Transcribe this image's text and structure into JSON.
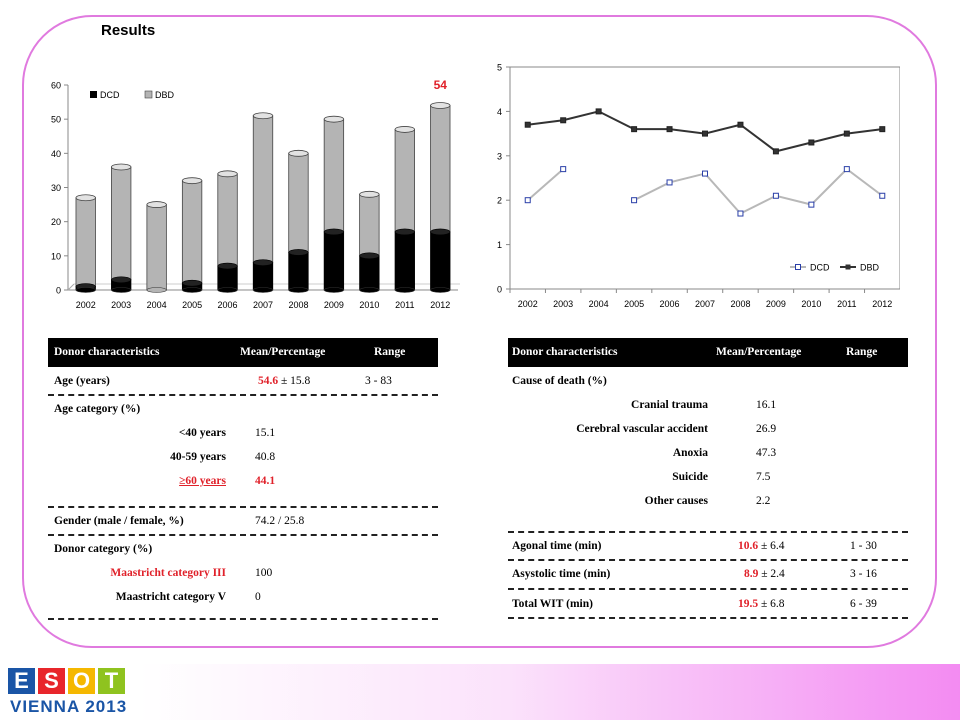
{
  "page_title": "Results",
  "chart_data": [
    {
      "type": "bar",
      "stacked": true,
      "categories": [
        "2002",
        "2003",
        "2004",
        "2005",
        "2006",
        "2007",
        "2008",
        "2009",
        "2010",
        "2011",
        "2012"
      ],
      "series": [
        {
          "name": "DCD",
          "values": [
            1,
            3,
            0,
            2,
            7,
            8,
            11,
            17,
            10,
            17,
            17
          ],
          "color": "#000000"
        },
        {
          "name": "DBD",
          "values": [
            26,
            33,
            25,
            30,
            27,
            43,
            29,
            33,
            18,
            30,
            37
          ],
          "color": "#b4b4b4"
        }
      ],
      "yticks": [
        0,
        10,
        20,
        30,
        40,
        50,
        60
      ],
      "ylim": [
        0,
        60
      ],
      "legend": "top-left",
      "annotation": {
        "text": "54",
        "category": "2012",
        "color": "#e0212a"
      }
    },
    {
      "type": "line",
      "categories": [
        "2002",
        "2003",
        "2004",
        "2005",
        "2006",
        "2007",
        "2008",
        "2009",
        "2010",
        "2011",
        "2012"
      ],
      "series": [
        {
          "name": "DCD",
          "values": [
            2.0,
            2.7,
            null,
            2.0,
            2.4,
            2.6,
            1.7,
            2.1,
            1.9,
            2.7,
            2.1
          ],
          "color": "#b8b8b8",
          "marker": "square"
        },
        {
          "name": "DBD",
          "values": [
            3.7,
            3.8,
            4.0,
            3.6,
            3.6,
            3.5,
            3.7,
            3.1,
            3.3,
            3.5,
            3.6
          ],
          "color": "#333333",
          "marker": "square"
        }
      ],
      "yticks": [
        0,
        1,
        2,
        3,
        4,
        5
      ],
      "ylim": [
        0,
        5
      ],
      "legend": "bottom-right"
    }
  ],
  "table_left": {
    "headers": [
      "Donor characteristics",
      "Mean/Percentage",
      "Range"
    ],
    "age_label": "Age (years)",
    "age_mean": "54.6",
    "age_sd": " ± 15.8",
    "age_range": "3 - 83",
    "age_cat_label": "Age category (%)",
    "age_cat_1_label": "<40 years",
    "age_cat_1_value": "15.1",
    "age_cat_2_label": "40-59 years",
    "age_cat_2_value": "40.8",
    "age_cat_3_label": "≥60 years",
    "age_cat_3_value": "44.1",
    "gender_label": "Gender (male / female, %)",
    "gender_value": "74.2 / 25.8",
    "donor_cat_label": "Donor category (%)",
    "donor_cat_1_label": "Maastricht category III",
    "donor_cat_1_value": "100",
    "donor_cat_2_label": "Maastricht category V",
    "donor_cat_2_value": "0"
  },
  "table_right": {
    "headers": [
      "Donor characteristics",
      "Mean/Percentage",
      "Range"
    ],
    "cause_label": "Cause of death (%)",
    "cause_1_label": "Cranial trauma",
    "cause_1_value": "16.1",
    "cause_2_label": "Cerebral vascular accident",
    "cause_2_value": "26.9",
    "cause_3_label": "Anoxia",
    "cause_3_value": "47.3",
    "cause_4_label": "Suicide",
    "cause_4_value": "7.5",
    "cause_5_label": "Other causes",
    "cause_5_value": "2.2",
    "agonal_label": "Agonal time (min)",
    "agonal_mean": "10.6",
    "agonal_sd": " ± 6.4",
    "agonal_range": "1 - 30",
    "asys_label": "Asystolic time (min)",
    "asys_mean": "8.9",
    "asys_sd": " ± 2.4",
    "asys_range": "3 - 16",
    "wit_label": "Total WIT (min)",
    "wit_mean": "19.5",
    "wit_sd": " ± 6.8",
    "wit_range": "6 - 39"
  },
  "logo": {
    "letters": [
      "E",
      "S",
      "O",
      "T"
    ],
    "letter_colors": [
      "#1a55a6",
      "#e8262b",
      "#f5b800",
      "#8fc31f"
    ],
    "city": "VIENNA 2013"
  }
}
